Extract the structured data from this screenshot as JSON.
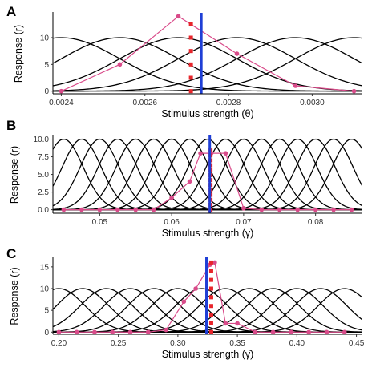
{
  "colors": {
    "curves": "#000000",
    "response": "#d94b8a",
    "decoded": "#e8252b",
    "estimate": "#1f3fd6"
  },
  "chart_data": [
    {
      "type": "line",
      "panel_label": "A",
      "xlabel": "Stimulus strength (θ)",
      "ylabel": "Response (r)",
      "xlim": [
        0.00238,
        0.00312
      ],
      "ylim": [
        -0.5,
        14.5
      ],
      "xticks": [
        0.0024,
        0.0026,
        0.0028,
        0.003
      ],
      "xtick_labels": [
        "0.0024",
        "0.0026",
        "0.0028",
        "0.0030"
      ],
      "yticks": [
        0,
        5,
        10
      ],
      "ytick_labels": [
        "0",
        "5",
        "10"
      ],
      "tuning_curves": {
        "centers": [
          0.0024,
          0.00254,
          0.00268,
          0.00282,
          0.00296,
          0.0031
        ],
        "amplitude": 10,
        "width": 0.00014
      },
      "responses": {
        "x": [
          0.0024,
          0.00254,
          0.00268,
          0.00282,
          0.00296,
          0.0031
        ],
        "y": [
          0,
          5,
          14,
          7,
          1,
          0
        ]
      },
      "decoded_points": {
        "x": 0.00271,
        "y": [
          0,
          2.5,
          5,
          7.5,
          10,
          12.5
        ]
      },
      "estimate_x": 0.002735
    },
    {
      "type": "line",
      "panel_label": "B",
      "xlabel": "Stimulus strength (γ)",
      "ylabel": "Response (r)",
      "xlim": [
        0.0435,
        0.0865
      ],
      "ylim": [
        -0.5,
        10.4
      ],
      "xticks": [
        0.05,
        0.06,
        0.07,
        0.08
      ],
      "xtick_labels": [
        "0.05",
        "0.06",
        "0.07",
        "0.08"
      ],
      "yticks": [
        0,
        2.5,
        5,
        7.5,
        10
      ],
      "ytick_labels": [
        "0.0",
        "2.5",
        "5.0",
        "7.5",
        "10.0"
      ],
      "tuning_curves": {
        "centers": [
          0.045,
          0.0475,
          0.05,
          0.0525,
          0.055,
          0.0575,
          0.06,
          0.0625,
          0.065,
          0.0675,
          0.07,
          0.0725,
          0.075,
          0.0775,
          0.08,
          0.0825,
          0.085
        ],
        "amplitude": 10,
        "width": 0.0027
      },
      "responses": {
        "x": [
          0.045,
          0.0475,
          0.05,
          0.0525,
          0.055,
          0.0575,
          0.06,
          0.0625,
          0.064,
          0.0655,
          0.0675,
          0.07,
          0.0725,
          0.075,
          0.0775,
          0.08,
          0.0825,
          0.085
        ],
        "y": [
          0,
          0,
          0,
          0,
          0,
          0,
          1.7,
          4.0,
          8.0,
          8.0,
          8.0,
          0.2,
          0,
          0,
          0,
          0,
          0,
          0
        ]
      },
      "decoded_points": {
        "x": 0.0654,
        "y": [
          0,
          0.7,
          1.4,
          2.1,
          2.8,
          3.5,
          4.2,
          4.9,
          5.6,
          6.3,
          7.0,
          7.7,
          8.4
        ]
      },
      "estimate_x": 0.0653
    },
    {
      "type": "line",
      "panel_label": "C",
      "xlabel": "Stimulus strength (γ̇)",
      "ylabel": "Response (r)",
      "xlim": [
        0.195,
        0.455
      ],
      "ylim": [
        -0.5,
        17
      ],
      "xticks": [
        0.2,
        0.25,
        0.3,
        0.35,
        0.4,
        0.45
      ],
      "xtick_labels": [
        "0.20",
        "0.25",
        "0.30",
        "0.35",
        "0.40",
        "0.45"
      ],
      "yticks": [
        0,
        5,
        10,
        15
      ],
      "ytick_labels": [
        "0",
        "5",
        "10",
        "15"
      ],
      "tuning_curves": {
        "centers": [
          0.2,
          0.22,
          0.24,
          0.26,
          0.28,
          0.3,
          0.32,
          0.34,
          0.36,
          0.38,
          0.4,
          0.42,
          0.44
        ],
        "amplitude": 10,
        "width": 0.022
      },
      "responses": {
        "x": [
          0.2,
          0.215,
          0.23,
          0.245,
          0.26,
          0.275,
          0.29,
          0.305,
          0.315,
          0.327,
          0.331,
          0.34,
          0.35,
          0.365,
          0.38,
          0.395,
          0.41,
          0.425,
          0.44
        ],
        "y": [
          0,
          0,
          0,
          0,
          0,
          0,
          0.5,
          7,
          10,
          15.5,
          16,
          2,
          2,
          0,
          0,
          0,
          0,
          0,
          0
        ]
      },
      "decoded_points": {
        "x": 0.328,
        "y": [
          0,
          2,
          4,
          6,
          8,
          10,
          12,
          14,
          16
        ]
      },
      "estimate_x": 0.324
    }
  ]
}
